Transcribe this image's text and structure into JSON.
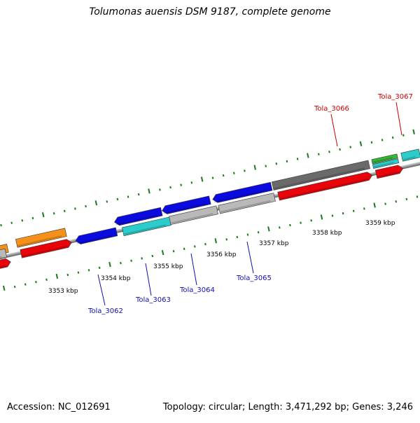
{
  "title": "Tolumonas auensis DSM 9187, complete genome",
  "footer": {
    "accession": "Accession: NC_012691",
    "summary": "Topology: circular; Length: 3,471,292 bp; Genes: 3,246"
  },
  "kbp_labels": [
    "3353 kbp",
    "3354 kbp",
    "3355 kbp",
    "3356 kbp",
    "3357 kbp",
    "3358 kbp",
    "3359 kbp"
  ],
  "gene_labels": [
    "Tola_3062",
    "Tola_3063",
    "Tola_3064",
    "Tola_3065",
    "Tola_3066",
    "Tola_3067"
  ],
  "colors": {
    "blue": "#0b0be0",
    "red": "#e8040a",
    "orange": "#f5901a",
    "cyan": "#2ccccc",
    "gray": "#b9b9b9",
    "dark_gray": "#6a6a6a",
    "green": "#33bb33",
    "tick_green": "#1a7a1a",
    "label_blue": "#1010b0",
    "label_red": "#cc0000"
  }
}
